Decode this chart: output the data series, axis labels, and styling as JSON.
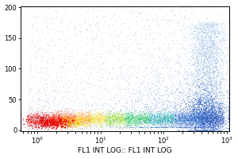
{
  "title": "",
  "xlabel": "FL1 INT LOG:: FL1 INT LOG",
  "ylabel": "",
  "xlim_log": [
    0.55,
    1100
  ],
  "ylim": [
    -2,
    202
  ],
  "yticks": [
    0,
    50,
    100,
    150,
    200
  ],
  "background_color": "#ffffff",
  "plot_bg_color": "#ffffff",
  "xlabel_fontsize": 6.5,
  "tick_fontsize": 6,
  "figsize": [
    3.0,
    2.0
  ],
  "dpi": 100
}
